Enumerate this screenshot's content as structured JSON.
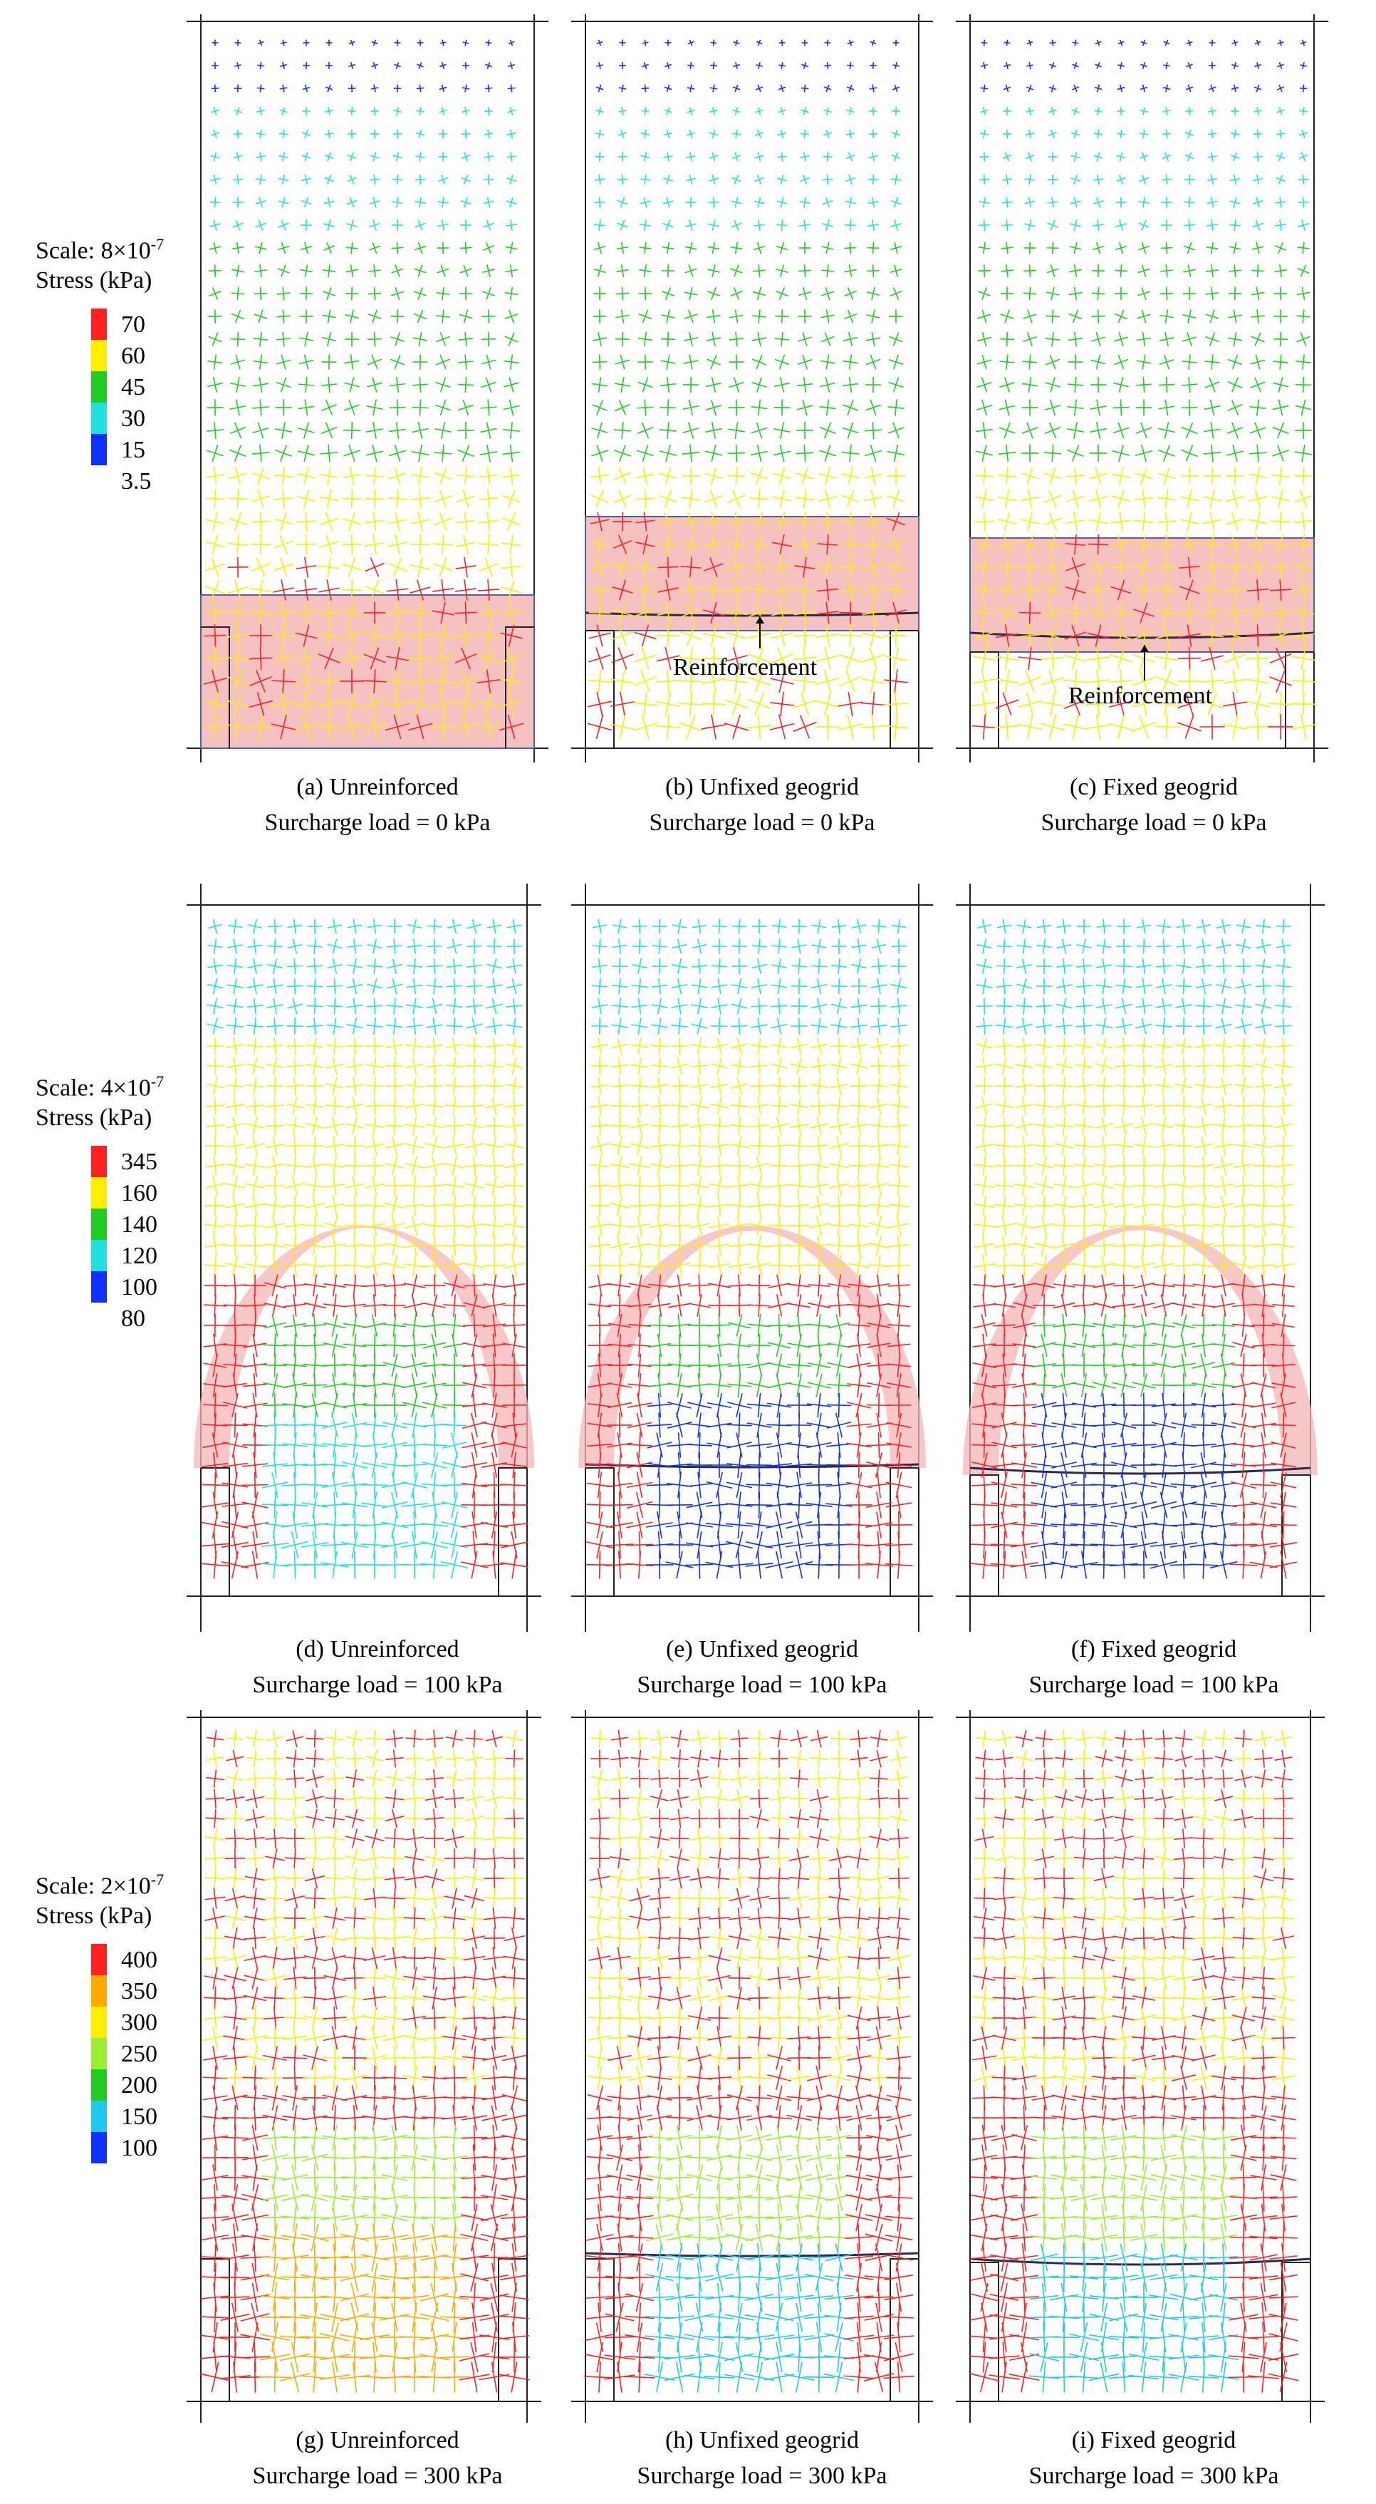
{
  "figure": {
    "rows": [
      {
        "legend": {
          "scale_label": "Scale: 8×10",
          "scale_exp": "-7",
          "unit_label": "Stress (kPa)",
          "ticks": [
            "70",
            "60",
            "45",
            "30",
            "15",
            "3.5"
          ],
          "colors": [
            "#ff2020",
            "#ffee00",
            "#22cc22",
            "#20e0e0",
            "#1030ff"
          ]
        },
        "panels": [
          {
            "caption": "(a) Unreinforced",
            "load": "Surcharge load = 0 kPa"
          },
          {
            "caption": "(b) Unfixed geogrid",
            "load": "Surcharge load = 0 kPa",
            "annotation": "Reinforcement"
          },
          {
            "caption": "(c) Fixed geogrid",
            "load": "Surcharge load = 0 kPa",
            "annotation": "Reinforcement"
          }
        ]
      },
      {
        "legend": {
          "scale_label": "Scale: 4×10",
          "scale_exp": "-7",
          "unit_label": "Stress (kPa)",
          "ticks": [
            "345",
            "160",
            "140",
            "120",
            "100",
            "80"
          ],
          "colors": [
            "#ff2020",
            "#ffee00",
            "#22cc22",
            "#20e0e0",
            "#1030ff"
          ]
        },
        "panels": [
          {
            "caption": "(d) Unreinforced",
            "load": "Surcharge load = 100 kPa"
          },
          {
            "caption": "(e) Unfixed geogrid",
            "load": "Surcharge load = 100 kPa"
          },
          {
            "caption": "(f) Fixed geogrid",
            "load": "Surcharge load = 100 kPa"
          }
        ]
      },
      {
        "legend": {
          "scale_label": "Scale: 2×10",
          "scale_exp": "-7",
          "unit_label": "Stress (kPa)",
          "ticks": [
            "400",
            "350",
            "300",
            "250",
            "200",
            "150",
            "100"
          ],
          "colors": [
            "#ff2020",
            "#ffaa00",
            "#ffee00",
            "#99ee33",
            "#22cc22",
            "#20c8f0",
            "#1030ff"
          ]
        },
        "panels": [
          {
            "caption": "(g) Unreinforced",
            "load": "Surcharge load = 300 kPa"
          },
          {
            "caption": "(h) Unfixed geogrid",
            "load": "Surcharge load = 300 kPa"
          },
          {
            "caption": "(i) Fixed geogrid",
            "load": "Surcharge load = 300 kPa"
          }
        ]
      }
    ]
  }
}
